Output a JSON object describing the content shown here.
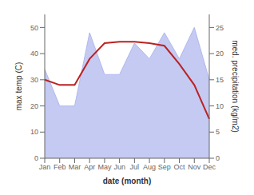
{
  "chart_data": {
    "type": "line",
    "xlabel": "date (month)",
    "ylabel": "max temp (C)",
    "y2label": "med. precipitation (kg/m2)",
    "categories": [
      "Jan",
      "Feb",
      "Mar",
      "Apr",
      "May",
      "Jun",
      "Jul",
      "Aug",
      "Sep",
      "Oct",
      "Nov",
      "Dec"
    ],
    "series": [
      {
        "type": "area",
        "color": "#b0b8ee",
        "axis": "y2",
        "values": [
          17,
          10,
          10,
          24,
          16,
          16,
          22,
          19,
          24,
          19,
          25,
          15
        ]
      },
      {
        "type": "line",
        "color": "#bb2222",
        "axis": "y",
        "values": [
          30,
          28,
          28,
          38,
          44,
          44.5,
          44.5,
          44,
          43,
          36,
          28,
          15
        ]
      }
    ],
    "ylim": [
      0,
      55
    ],
    "yticks": [
      0,
      10,
      20,
      30,
      40,
      50
    ],
    "y2lim": [
      0,
      27.5
    ],
    "y2ticks": [
      0,
      5,
      10,
      15,
      20,
      25
    ],
    "grid": false
  }
}
